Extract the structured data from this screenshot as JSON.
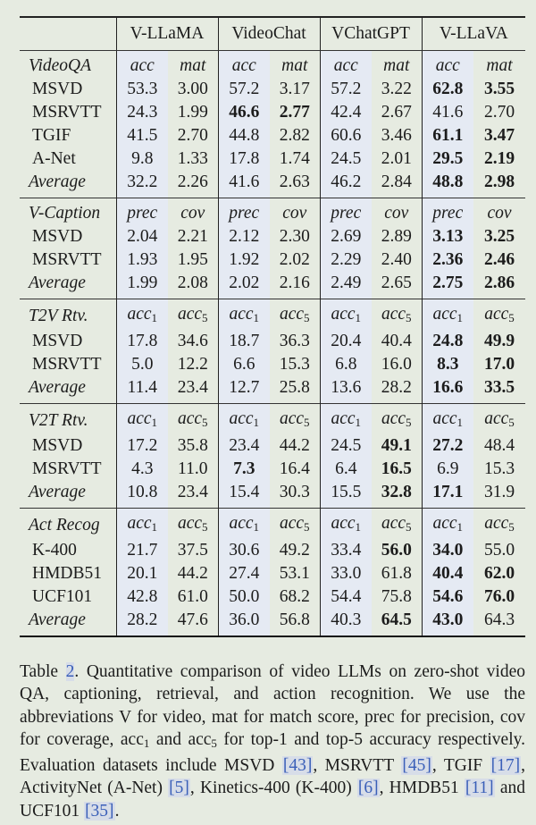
{
  "header": {
    "models": [
      "V-LLaMA",
      "VideoChat",
      "VChatGPT",
      "V-LLaVA"
    ]
  },
  "sections": [
    {
      "name": "VideoQA",
      "metrics": [
        "acc",
        "mat"
      ],
      "rows": [
        {
          "label": "MSVD",
          "values": [
            "53.3",
            "3.00",
            "57.2",
            "3.17",
            "57.2",
            "3.22",
            "62.8",
            "3.55"
          ],
          "bold": [
            6,
            7
          ]
        },
        {
          "label": "MSRVTT",
          "values": [
            "24.3",
            "1.99",
            "46.6",
            "2.77",
            "42.4",
            "2.67",
            "41.6",
            "2.70"
          ],
          "bold": [
            2,
            3
          ]
        },
        {
          "label": "TGIF",
          "values": [
            "41.5",
            "2.70",
            "44.8",
            "2.82",
            "60.6",
            "3.46",
            "61.1",
            "3.47"
          ],
          "bold": [
            6,
            7
          ]
        },
        {
          "label": "A-Net",
          "values": [
            "9.8",
            "1.33",
            "17.8",
            "1.74",
            "24.5",
            "2.01",
            "29.5",
            "2.19"
          ],
          "bold": [
            6,
            7
          ]
        },
        {
          "label": "Average",
          "italic": true,
          "values": [
            "32.2",
            "2.26",
            "41.6",
            "2.63",
            "46.2",
            "2.84",
            "48.8",
            "2.98"
          ],
          "bold": [
            6,
            7
          ]
        }
      ]
    },
    {
      "name": "V-Caption",
      "metrics": [
        "prec",
        "cov"
      ],
      "rows": [
        {
          "label": "MSVD",
          "values": [
            "2.04",
            "2.21",
            "2.12",
            "2.30",
            "2.69",
            "2.89",
            "3.13",
            "3.25"
          ],
          "bold": [
            6,
            7
          ]
        },
        {
          "label": "MSRVTT",
          "values": [
            "1.93",
            "1.95",
            "1.92",
            "2.02",
            "2.29",
            "2.40",
            "2.36",
            "2.46"
          ],
          "bold": [
            6,
            7
          ]
        },
        {
          "label": "Average",
          "italic": true,
          "values": [
            "1.99",
            "2.08",
            "2.02",
            "2.16",
            "2.49",
            "2.65",
            "2.75",
            "2.86"
          ],
          "bold": [
            6,
            7
          ]
        }
      ]
    },
    {
      "name": "T2V Rtv.",
      "metrics": [
        "acc1",
        "acc5"
      ],
      "rows": [
        {
          "label": "MSVD",
          "values": [
            "17.8",
            "34.6",
            "18.7",
            "36.3",
            "20.4",
            "40.4",
            "24.8",
            "49.9"
          ],
          "bold": [
            6,
            7
          ]
        },
        {
          "label": "MSRVTT",
          "values": [
            "5.0",
            "12.2",
            "6.6",
            "15.3",
            "6.8",
            "16.0",
            "8.3",
            "17.0"
          ],
          "bold": [
            6,
            7
          ]
        },
        {
          "label": "Average",
          "italic": true,
          "values": [
            "11.4",
            "23.4",
            "12.7",
            "25.8",
            "13.6",
            "28.2",
            "16.6",
            "33.5"
          ],
          "bold": [
            6,
            7
          ]
        }
      ]
    },
    {
      "name": "V2T Rtv.",
      "metrics": [
        "acc1",
        "acc5"
      ],
      "rows": [
        {
          "label": "MSVD",
          "values": [
            "17.2",
            "35.8",
            "23.4",
            "44.2",
            "24.5",
            "49.1",
            "27.2",
            "48.4"
          ],
          "bold": [
            5,
            6
          ]
        },
        {
          "label": "MSRVTT",
          "values": [
            "4.3",
            "11.0",
            "7.3",
            "16.4",
            "6.4",
            "16.5",
            "6.9",
            "15.3"
          ],
          "bold": [
            2,
            5
          ]
        },
        {
          "label": "Average",
          "italic": true,
          "values": [
            "10.8",
            "23.4",
            "15.4",
            "30.3",
            "15.5",
            "32.8",
            "17.1",
            "31.9"
          ],
          "bold": [
            5,
            6
          ]
        }
      ]
    },
    {
      "name": "Act Recog",
      "metrics": [
        "acc1",
        "acc5"
      ],
      "rows": [
        {
          "label": "K-400",
          "values": [
            "21.7",
            "37.5",
            "30.6",
            "49.2",
            "33.4",
            "56.0",
            "34.0",
            "55.0"
          ],
          "bold": [
            5,
            6
          ]
        },
        {
          "label": "HMDB51",
          "values": [
            "20.1",
            "44.2",
            "27.4",
            "53.1",
            "33.0",
            "61.8",
            "40.4",
            "62.0"
          ],
          "bold": [
            6,
            7
          ]
        },
        {
          "label": "UCF101",
          "values": [
            "42.8",
            "61.0",
            "50.0",
            "68.2",
            "54.4",
            "75.8",
            "54.6",
            "76.0"
          ],
          "bold": [
            6,
            7
          ]
        },
        {
          "label": "Average",
          "italic": true,
          "values": [
            "28.2",
            "47.6",
            "36.0",
            "56.8",
            "40.3",
            "64.5",
            "43.0",
            "64.3"
          ],
          "bold": [
            5,
            6
          ]
        }
      ]
    }
  ],
  "caption": {
    "segments": [
      {
        "t": "Table "
      },
      {
        "t": "2",
        "ref": true
      },
      {
        "t": ".  Quantitative comparison of video LLMs on zero-shot video QA, captioning, retrieval, and action recognition.  We use the abbreviations V for video, mat for match score, prec for precision, cov for coverage, acc"
      },
      {
        "t": "1",
        "sub": true
      },
      {
        "t": " and acc"
      },
      {
        "t": "5",
        "sub": true
      },
      {
        "t": " for top-1 and top-5 accuracy respectively.  Evaluation datasets include MSVD "
      },
      {
        "t": "[43]",
        "cite": true
      },
      {
        "t": ", MSRVTT "
      },
      {
        "t": "[45]",
        "cite": true
      },
      {
        "t": ", TGIF "
      },
      {
        "t": "[17]",
        "cite": true
      },
      {
        "t": ", ActivityNet (A-Net) "
      },
      {
        "t": "[5]",
        "cite": true
      },
      {
        "t": ", Kinetics-400 (K-400) "
      },
      {
        "t": "[6]",
        "cite": true
      },
      {
        "t": ", HMDB51 "
      },
      {
        "t": "[11]",
        "cite": true
      },
      {
        "t": " and UCF101 "
      },
      {
        "t": "[35]",
        "cite": true
      },
      {
        "t": "."
      }
    ]
  },
  "colors": {
    "background": "#e6ebe1",
    "column_shade": "#e5eaf3",
    "citation": "#3a5fb8"
  }
}
